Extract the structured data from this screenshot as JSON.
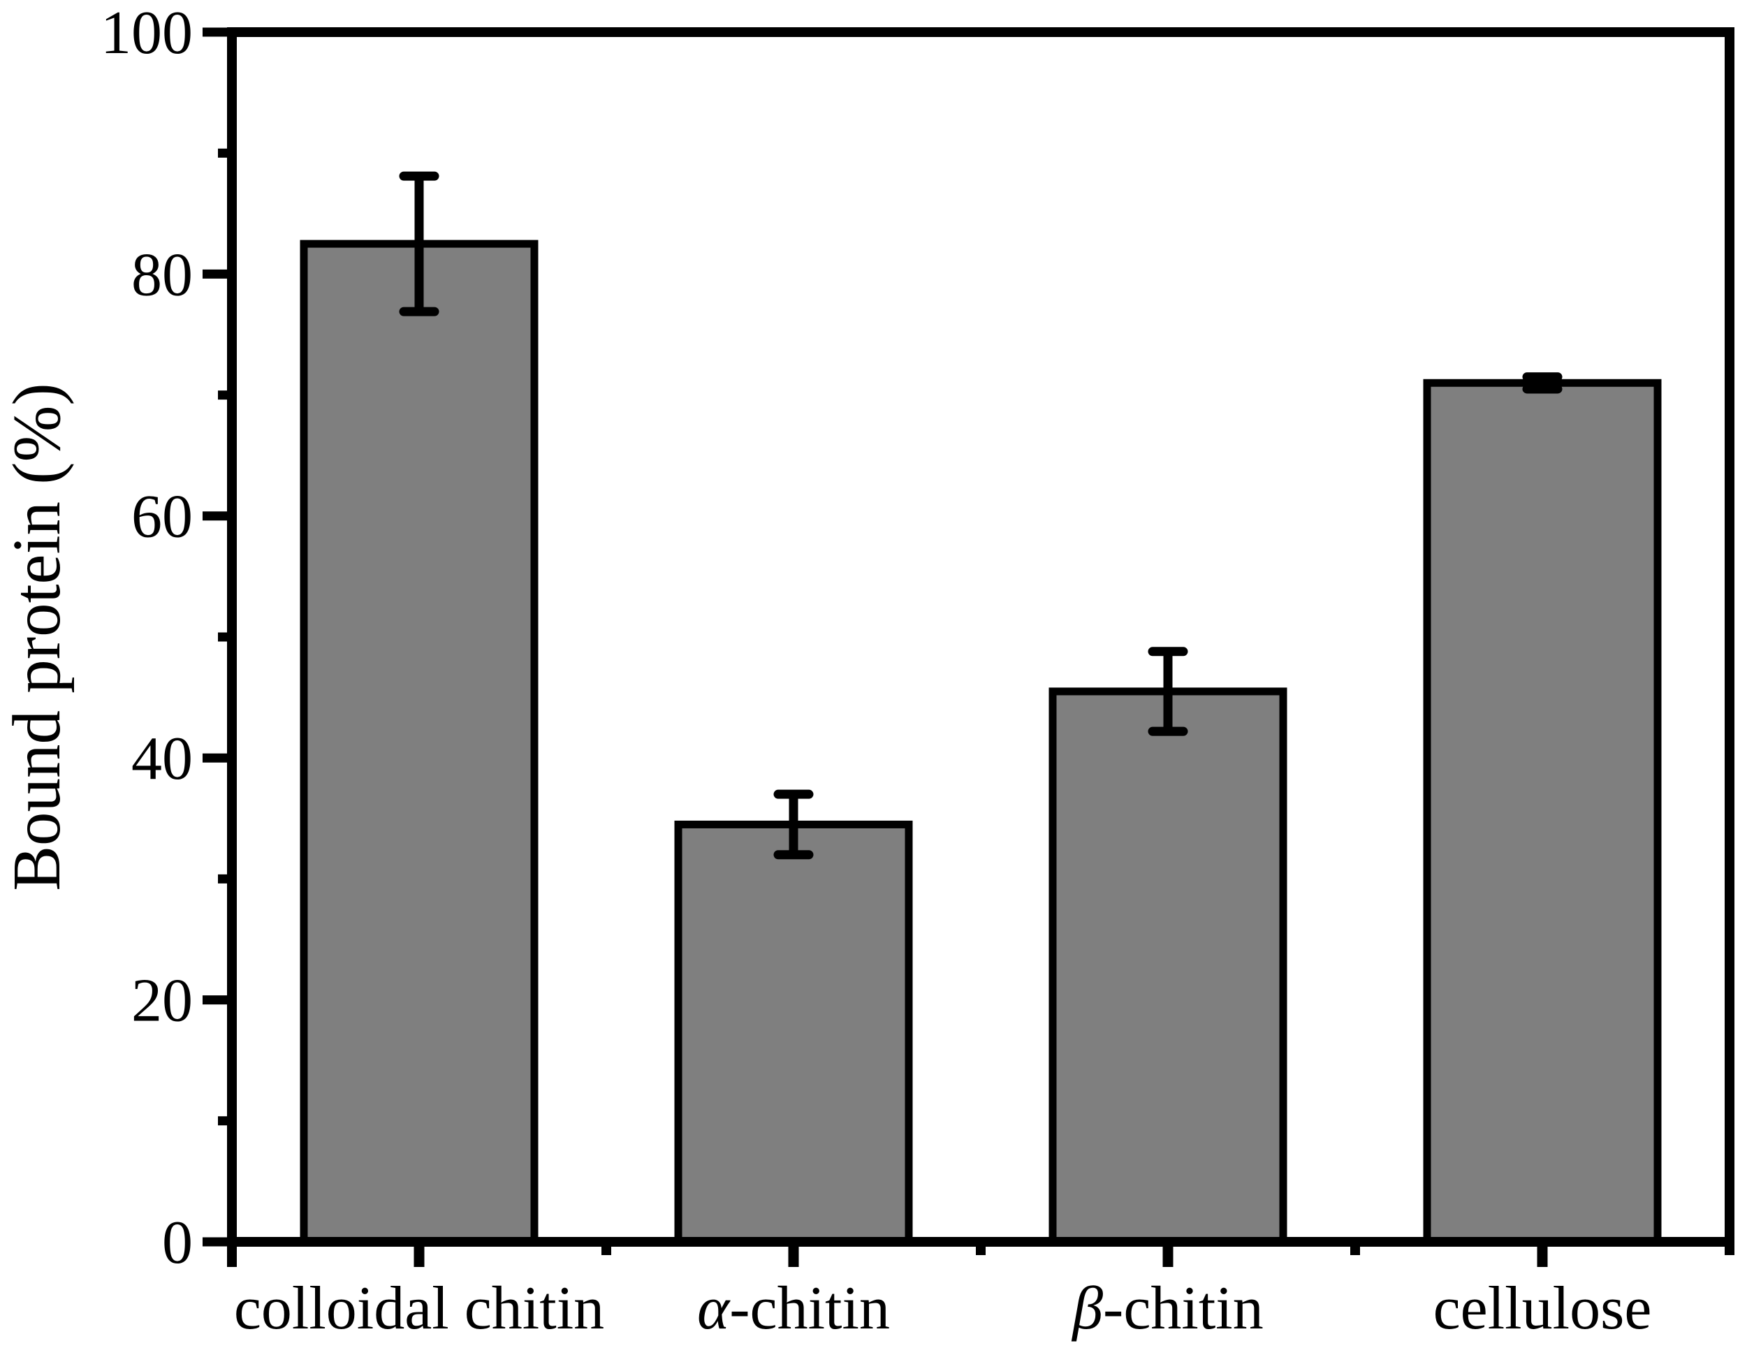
{
  "chart_data": {
    "type": "bar",
    "title": "",
    "xlabel": "",
    "ylabel": "Bound protein (%)",
    "categories": [
      "colloidal chitin",
      "α-chitin",
      "β-chitin",
      "cellulose"
    ],
    "values": [
      82.5,
      34.5,
      45.5,
      71
    ],
    "errors": [
      5.6,
      2.5,
      3.3,
      0.5
    ],
    "ylim": [
      0,
      100
    ],
    "yticks": [
      0,
      20,
      40,
      60,
      80,
      100
    ],
    "ytick_labels": [
      "0",
      "20",
      "40",
      "60",
      "80",
      "100"
    ],
    "y_minor_tick_step": 10,
    "grid": false,
    "legend_position": "none",
    "bar_fill": "#7f7f7f",
    "bar_stroke": "#000000",
    "axis_color": "#000000",
    "background": "#ffffff"
  }
}
